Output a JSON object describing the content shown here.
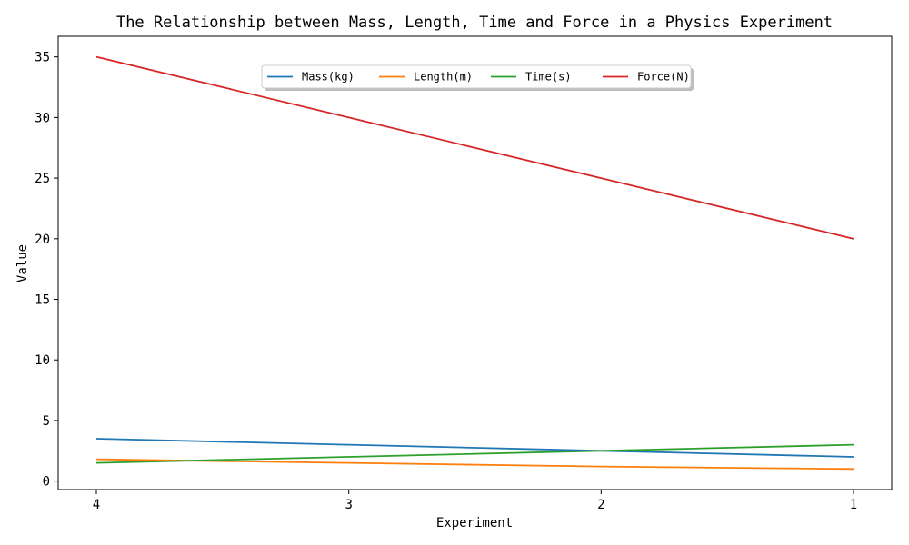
{
  "chart_data": {
    "type": "line",
    "title": "The Relationship between Mass, Length, Time and Force in a Physics Experiment",
    "xlabel": "Experiment",
    "ylabel": "Value",
    "x": [
      "4",
      "3",
      "2",
      "1"
    ],
    "ylim": [
      -0.7,
      36.7
    ],
    "yticks": [
      0,
      5,
      10,
      15,
      20,
      25,
      30,
      35
    ],
    "grid": false,
    "legend_position": "upper-center",
    "series": [
      {
        "name": "Mass(kg)",
        "color": "#1f77b4",
        "values": [
          3.5,
          3.0,
          2.5,
          2.0
        ]
      },
      {
        "name": "Length(m)",
        "color": "#ff7f0e",
        "values": [
          1.8,
          1.5,
          1.2,
          1.0
        ]
      },
      {
        "name": "Time(s)",
        "color": "#2ca02c",
        "values": [
          1.5,
          2.0,
          2.5,
          3.0
        ]
      },
      {
        "name": "Force(N)",
        "color": "#d62728",
        "values": [
          35,
          30,
          25,
          20
        ]
      }
    ]
  }
}
